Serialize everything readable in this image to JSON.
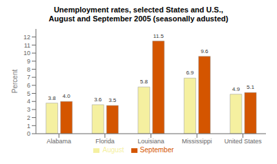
{
  "chart_data": {
    "type": "bar",
    "title": "Unemployment rates, selected States and U.S.,\nAugust and September 2005 (seasonally adusted)",
    "categories": [
      "Alabama",
      "Florida",
      "Louisiana",
      "Mississippi",
      "United States"
    ],
    "series": [
      {
        "name": "August",
        "color": "#F5F0A0",
        "values": [
          3.8,
          3.6,
          5.8,
          6.9,
          4.9
        ],
        "value_labels": [
          "3.8",
          "3.6",
          "5.8",
          "6.9",
          "4.9"
        ]
      },
      {
        "name": "September",
        "color": "#D45500",
        "values": [
          4.0,
          3.5,
          11.5,
          9.6,
          5.1
        ],
        "value_labels": [
          "4.0",
          "3.5",
          "11.5",
          "9.6",
          "5.1"
        ]
      }
    ],
    "ylabel": "Percent",
    "ylim": [
      0,
      13
    ],
    "yticks": [
      0,
      1,
      2,
      3,
      4,
      5,
      6,
      7,
      8,
      9,
      10,
      11,
      12
    ],
    "data_labels": true,
    "legend": "bottom",
    "grid": false
  }
}
